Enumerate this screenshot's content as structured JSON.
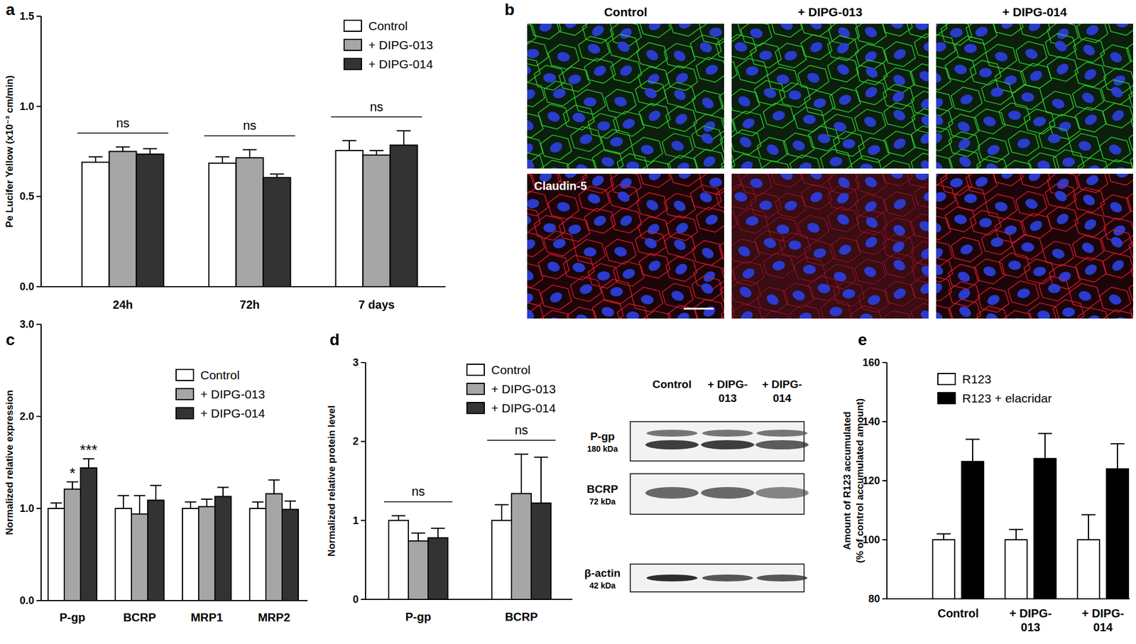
{
  "panel_labels": [
    "a",
    "b",
    "c",
    "d",
    "e"
  ],
  "chart_data": [
    {
      "type": "bar",
      "y_label": "Pe Lucifer Yellow (x10⁻³ cm/min)",
      "categories": [
        "24h",
        "72h",
        "7 days"
      ],
      "series": [
        {
          "name": "Control",
          "color": "#ffffff",
          "values": [
            0.69,
            0.685,
            0.755
          ],
          "errors": [
            0.03,
            0.035,
            0.055
          ]
        },
        {
          "name": "+ DIPG-013",
          "color": "#a6a6a6",
          "values": [
            0.75,
            0.715,
            0.73
          ],
          "errors": [
            0.025,
            0.045,
            0.025
          ]
        },
        {
          "name": "+ DIPG-014",
          "color": "#333333",
          "values": [
            0.735,
            0.605,
            0.785
          ],
          "errors": [
            0.03,
            0.02,
            0.08
          ]
        }
      ],
      "ylim": [
        0,
        1.5
      ],
      "yticks": [
        {
          "value": 0,
          "label": "0.0"
        },
        {
          "value": 0.5,
          "label": "0.5"
        },
        {
          "value": 1,
          "label": "1.0"
        },
        {
          "value": 1.5,
          "label": "1.5"
        }
      ],
      "legend": "top-right",
      "annotations": [
        {
          "text": "ns",
          "category": "24h"
        },
        {
          "text": "ns",
          "category": "72h"
        },
        {
          "text": "ns",
          "category": "7 days"
        }
      ]
    },
    {
      "type": "bar",
      "y_label": "Normalized relative expression",
      "categories": [
        "P-gp",
        "BCRP",
        "MRP1",
        "MRP2"
      ],
      "series": [
        {
          "name": "Control",
          "color": "#ffffff",
          "values": [
            1.0,
            1.0,
            1.0,
            1.0
          ],
          "errors": [
            0.06,
            0.14,
            0.07,
            0.07
          ]
        },
        {
          "name": "+ DIPG-013",
          "color": "#a6a6a6",
          "values": [
            1.21,
            0.94,
            1.02,
            1.16
          ],
          "errors": [
            0.08,
            0.2,
            0.08,
            0.15
          ]
        },
        {
          "name": "+ DIPG-014",
          "color": "#333333",
          "values": [
            1.44,
            1.09,
            1.13,
            0.99
          ],
          "errors": [
            0.1,
            0.16,
            0.1,
            0.09
          ]
        }
      ],
      "ylim": [
        0,
        3
      ],
      "yticks": [
        {
          "value": 0,
          "label": "0.0"
        },
        {
          "value": 1,
          "label": "1.0"
        },
        {
          "value": 2,
          "label": "2.0"
        },
        {
          "value": 3,
          "label": "3.0"
        }
      ],
      "legend": "top",
      "annotations": [
        {
          "text": "*",
          "category": "P-gp",
          "series": "+ DIPG-013"
        },
        {
          "text": "***",
          "category": "P-gp",
          "series": "+ DIPG-014"
        }
      ]
    },
    {
      "type": "bar",
      "y_label": "Normalized relative protein level",
      "categories": [
        "P-gp",
        "BCRP"
      ],
      "series": [
        {
          "name": "Control",
          "color": "#ffffff",
          "values": [
            1.0,
            1.0
          ],
          "errors": [
            0.06,
            0.2
          ]
        },
        {
          "name": "+ DIPG-013",
          "color": "#a6a6a6",
          "values": [
            0.74,
            1.34
          ],
          "errors": [
            0.1,
            0.5
          ]
        },
        {
          "name": "+ DIPG-014",
          "color": "#333333",
          "values": [
            0.78,
            1.22
          ],
          "errors": [
            0.12,
            0.58
          ]
        }
      ],
      "ylim": [
        0,
        3
      ],
      "yticks": [
        0,
        1,
        2,
        3
      ],
      "legend": "top",
      "annotations": [
        {
          "text": "ns",
          "category": "P-gp"
        },
        {
          "text": "ns",
          "category": "BCRP"
        }
      ]
    },
    {
      "type": "bar",
      "y_label": "Amount of R123 accumulated (% of control accumulated amount)",
      "categories": [
        "Control",
        "+ DIPG-013",
        "+ DIPG-014"
      ],
      "series": [
        {
          "name": "R123",
          "color": "#ffffff",
          "values": [
            100,
            100,
            100
          ],
          "errors": [
            2,
            3.5,
            8.5
          ]
        },
        {
          "name": "R123 + elacridar",
          "color": "#000000",
          "values": [
            126.5,
            127.5,
            124
          ],
          "errors": [
            7.5,
            8.5,
            8.5
          ]
        }
      ],
      "ylim": [
        80,
        160
      ],
      "yticks": [
        80,
        100,
        120,
        140,
        160
      ],
      "legend": "top"
    }
  ],
  "microscopy": {
    "columns": [
      "Control",
      "+ DIPG-013",
      "+ DIPG-014"
    ],
    "stain": "Claudin-5"
  },
  "blot": {
    "columns": [
      "Control",
      "+ DIPG-013",
      "+ DIPG-014"
    ],
    "rows": [
      {
        "name": "P-gp",
        "size": "180 kDa"
      },
      {
        "name": "BCRP",
        "size": "72 kDa"
      },
      {
        "name": "β-actin",
        "size": "42 kDa"
      }
    ]
  }
}
